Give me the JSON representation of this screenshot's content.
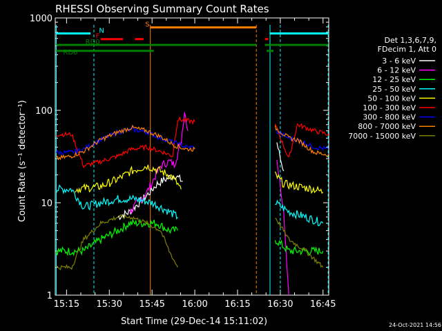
{
  "chart_data": {
    "type": "line",
    "title": "RHESSI Observing Summary Count Rates",
    "xlabel": "Start Time (29-Dec-14 15:11:02)",
    "ylabel": "Count Rate (s⁻¹ detector⁻¹)",
    "ylim": [
      1,
      1000
    ],
    "y_scale": "log",
    "xlim_minutes": [
      "15:11:02",
      "16:47:00"
    ],
    "x_ticks": [
      "15:15",
      "15:30",
      "15:45",
      "16:00",
      "16:15",
      "16:30",
      "16:45"
    ],
    "y_ticks": [
      "1",
      "10",
      "100",
      "1000"
    ],
    "legend_header": [
      "Det 1,3,6,7,9,",
      "FDecim 1, Att 0"
    ],
    "legend_placement": "right",
    "series": [
      {
        "name": "3 - 6 keV",
        "color": "#ffffff",
        "values": [
          [
            15.25,
            null
          ],
          [
            15.55,
            7
          ],
          [
            15.62,
            8
          ],
          [
            15.72,
            12
          ],
          [
            15.78,
            16
          ],
          [
            15.83,
            18
          ],
          [
            15.88,
            20
          ],
          [
            15.93,
            17
          ],
          [
            16.48,
            45
          ],
          [
            16.5,
            30
          ],
          [
            16.52,
            22
          ]
        ]
      },
      {
        "name": "6 - 12 keV",
        "color": "#ff00ff",
        "values": [
          [
            15.62,
            8
          ],
          [
            15.72,
            13
          ],
          [
            15.8,
            25
          ],
          [
            15.85,
            28
          ],
          [
            15.88,
            26
          ],
          [
            15.92,
            45
          ],
          [
            15.94,
            100
          ],
          [
            15.96,
            60
          ],
          [
            16.48,
            30
          ],
          [
            16.52,
            8
          ],
          [
            16.55,
            1
          ]
        ]
      },
      {
        "name": "12 - 25 keV",
        "color": "#00ff00",
        "values": [
          [
            15.19,
            3
          ],
          [
            15.28,
            3
          ],
          [
            15.35,
            3
          ],
          [
            15.45,
            4
          ],
          [
            15.55,
            5
          ],
          [
            15.62,
            6
          ],
          [
            15.72,
            6
          ],
          [
            15.78,
            6
          ],
          [
            15.85,
            5
          ],
          [
            15.9,
            5
          ],
          [
            16.47,
            4
          ],
          [
            16.55,
            3
          ],
          [
            16.65,
            3
          ],
          [
            16.75,
            3
          ]
        ]
      },
      {
        "name": "25 - 50 keV",
        "color": "#00ffff",
        "values": [
          [
            15.19,
            14
          ],
          [
            15.25,
            14
          ],
          [
            15.28,
            14
          ],
          [
            15.35,
            9
          ],
          [
            15.45,
            10
          ],
          [
            15.55,
            11
          ],
          [
            15.65,
            11
          ],
          [
            15.75,
            10
          ],
          [
            15.85,
            8
          ],
          [
            15.9,
            7
          ],
          [
            16.47,
            10
          ],
          [
            16.55,
            8
          ],
          [
            16.65,
            7
          ],
          [
            16.75,
            6
          ]
        ]
      },
      {
        "name": "50 - 100 keV",
        "color": "#ffff00",
        "values": [
          [
            15.3,
            14
          ],
          [
            15.45,
            15
          ],
          [
            15.55,
            18
          ],
          [
            15.63,
            22
          ],
          [
            15.72,
            25
          ],
          [
            15.8,
            22
          ],
          [
            15.87,
            19
          ],
          [
            15.92,
            14
          ],
          [
            16.47,
            20
          ],
          [
            16.52,
            16
          ],
          [
            16.6,
            15
          ],
          [
            16.7,
            14
          ],
          [
            16.75,
            13
          ]
        ]
      },
      {
        "name": "100 - 300 keV",
        "color": "#ff0000",
        "values": [
          [
            15.19,
            55
          ],
          [
            15.28,
            55
          ],
          [
            15.35,
            25
          ],
          [
            15.45,
            28
          ],
          [
            15.55,
            32
          ],
          [
            15.63,
            38
          ],
          [
            15.72,
            40
          ],
          [
            15.82,
            35
          ],
          [
            15.87,
            32
          ],
          [
            15.9,
            80
          ],
          [
            16.0,
            75
          ],
          [
            16.47,
            70
          ],
          [
            16.55,
            30
          ],
          [
            16.6,
            70
          ],
          [
            16.7,
            60
          ],
          [
            16.78,
            55
          ]
        ]
      },
      {
        "name": "300 - 800 keV",
        "color": "#0000ff",
        "values": [
          [
            15.19,
            35
          ],
          [
            15.28,
            35
          ],
          [
            15.35,
            38
          ],
          [
            15.45,
            48
          ],
          [
            15.55,
            58
          ],
          [
            15.63,
            62
          ],
          [
            15.72,
            58
          ],
          [
            15.8,
            50
          ],
          [
            15.88,
            45
          ],
          [
            15.95,
            40
          ],
          [
            16.0,
            40
          ],
          [
            16.47,
            60
          ],
          [
            16.55,
            50
          ],
          [
            16.6,
            48
          ],
          [
            16.7,
            40
          ],
          [
            16.78,
            38
          ]
        ]
      },
      {
        "name": "800 - 7000 keV",
        "color": "#ff8000",
        "values": [
          [
            15.19,
            30
          ],
          [
            15.28,
            32
          ],
          [
            15.35,
            36
          ],
          [
            15.45,
            48
          ],
          [
            15.55,
            58
          ],
          [
            15.63,
            65
          ],
          [
            15.72,
            60
          ],
          [
            15.8,
            52
          ],
          [
            15.88,
            42
          ],
          [
            15.95,
            38
          ],
          [
            16.0,
            38
          ],
          [
            16.47,
            65
          ],
          [
            16.55,
            50
          ],
          [
            16.6,
            48
          ],
          [
            16.7,
            35
          ],
          [
            16.78,
            33
          ]
        ]
      },
      {
        "name": "7000 - 15000 keV",
        "color": "#808000",
        "values": [
          [
            15.19,
            2
          ],
          [
            15.28,
            2
          ],
          [
            15.35,
            4
          ],
          [
            15.45,
            6
          ],
          [
            15.55,
            7
          ],
          [
            15.63,
            7
          ],
          [
            15.72,
            6
          ],
          [
            15.8,
            5
          ],
          [
            15.85,
            3
          ],
          [
            15.9,
            2
          ],
          [
            16.47,
            7
          ],
          [
            16.55,
            4
          ],
          [
            16.65,
            3
          ],
          [
            16.75,
            2
          ]
        ]
      }
    ],
    "flag_bars": [
      {
        "label": "N",
        "color": "#00ffff",
        "level": 680
      },
      {
        "label": "F",
        "color": "#ff0000",
        "level": 590
      },
      {
        "label": "S",
        "color": "#ff8000",
        "level": 790
      },
      {
        "label": "RD0",
        "color": "#008000",
        "level": 510
      },
      {
        "label": "RD6",
        "color": "#008000",
        "level": 440
      }
    ],
    "footer_stamp": "24-Oct-2021 14:56"
  }
}
